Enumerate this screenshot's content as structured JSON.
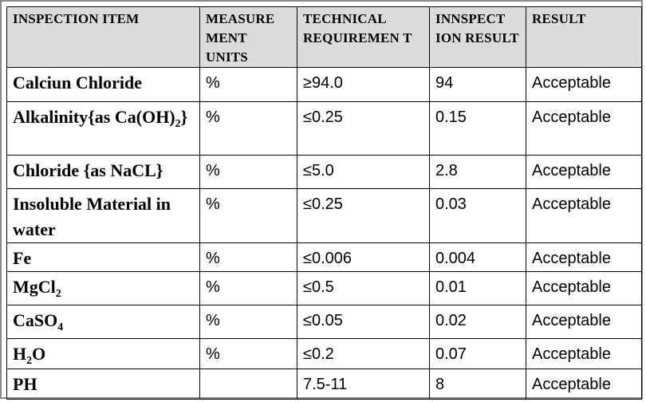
{
  "table": {
    "headers": {
      "item": "INSPECTION ITEM",
      "units": "MEASURE MENT UNITS",
      "requirement": "TECHNICAL REQUIREMEN T",
      "result_value": "INNSPECT ION RESULT",
      "result": "RESULT"
    },
    "rows": [
      {
        "item_parts": [
          "Calciun Chloride",
          "",
          ""
        ],
        "units": "%",
        "requirement": "≥94.0",
        "inspection": "94",
        "result": "Acceptable"
      },
      {
        "item_parts": [
          "Alkalinity{as Ca(OH)",
          "2",
          "}"
        ],
        "units": "%",
        "requirement": "≤0.25",
        "inspection": "0.15",
        "result": "Acceptable"
      },
      {
        "item_parts": [
          "Chloride {as NaCL}",
          "",
          ""
        ],
        "units": "%",
        "requirement": "≤5.0",
        "inspection": "2.8",
        "result": "Acceptable"
      },
      {
        "item_parts": [
          "Insoluble Material in water",
          "",
          ""
        ],
        "units": "%",
        "requirement": "≤0.25",
        "inspection": "0.03",
        "result": "Acceptable"
      },
      {
        "item_parts": [
          "Fe",
          "",
          ""
        ],
        "units": "%",
        "requirement": "≤0.006",
        "inspection": "0.004",
        "result": "Acceptable"
      },
      {
        "item_parts": [
          "MgCl",
          "2",
          ""
        ],
        "units": "%",
        "requirement": "≤0.5",
        "inspection": "0.01",
        "result": "Acceptable"
      },
      {
        "item_parts": [
          "CaSO",
          "4",
          ""
        ],
        "units": "%",
        "requirement": "≤0.05",
        "inspection": "0.02",
        "result": "Acceptable"
      },
      {
        "item_parts": [
          "H",
          "2",
          "O"
        ],
        "units": "%",
        "requirement": "≤0.2",
        "inspection": "0.07",
        "result": "Acceptable"
      },
      {
        "item_parts": [
          "PH",
          "",
          ""
        ],
        "units": "",
        "requirement": "7.5-11",
        "inspection": "8",
        "result": "Acceptable"
      }
    ]
  }
}
